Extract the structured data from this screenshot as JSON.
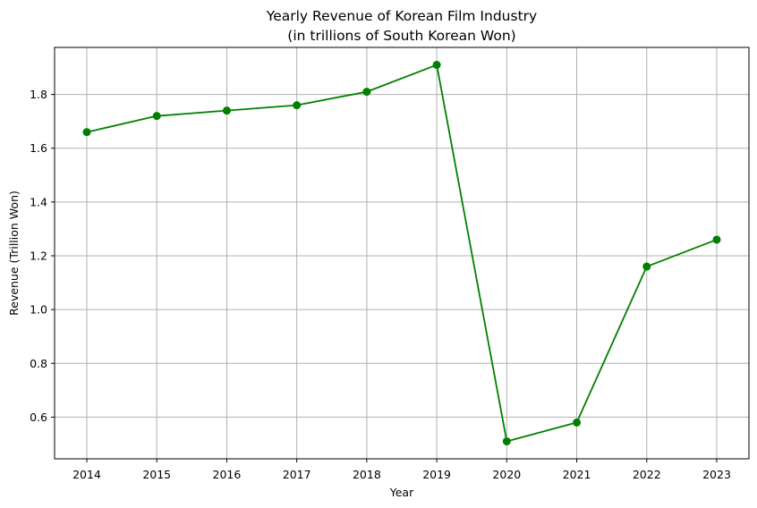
{
  "chart_data": {
    "type": "line",
    "title": "Yearly Revenue of Korean Film Industry",
    "subtitle": "(in trillions of South Korean Won)",
    "xlabel": "Year",
    "ylabel": "Revenue (Trillion Won)",
    "x": [
      "2014",
      "2015",
      "2016",
      "2017",
      "2018",
      "2019",
      "2020",
      "2021",
      "2022",
      "2023"
    ],
    "series": [
      {
        "values": [
          1.66,
          1.72,
          1.74,
          1.76,
          1.81,
          1.91,
          0.51,
          0.58,
          1.16,
          1.26
        ],
        "color": "#008000",
        "marker": "circle"
      }
    ],
    "ylim": [
      0.445,
      1.975
    ],
    "yticks": [
      "0.6",
      "0.8",
      "1.0",
      "1.2",
      "1.4",
      "1.6",
      "1.8"
    ],
    "grid": true,
    "legend": "none"
  }
}
